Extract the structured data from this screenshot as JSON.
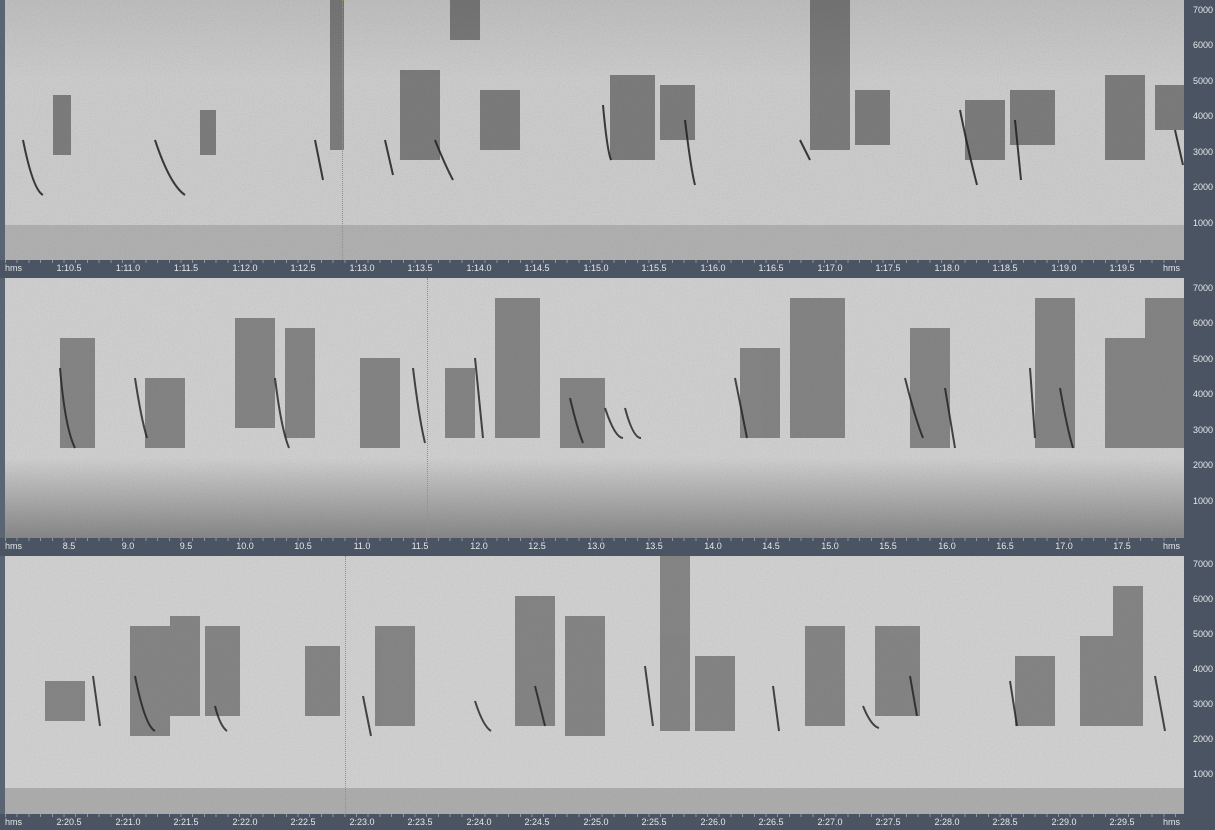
{
  "panels": [
    {
      "x_unit_left": "hms",
      "x_unit_right": "hms",
      "x_ticks": [
        "1:10.5",
        "1:11.0",
        "1:11.5",
        "1:12.0",
        "1:12.5",
        "1:13.0",
        "1:13.5",
        "1:14.0",
        "1:14.5",
        "1:15.0",
        "1:15.5",
        "1:16.0",
        "1:16.5",
        "1:17.0",
        "1:17.5",
        "1:18.0",
        "1:18.5",
        "1:19.0",
        "1:19.5"
      ],
      "y_ticks": [
        "7000",
        "6000",
        "5000",
        "4000",
        "3000",
        "2000",
        "1000"
      ]
    },
    {
      "x_unit_left": "hms",
      "x_unit_right": "hms",
      "x_ticks": [
        "8.5",
        "9.0",
        "9.5",
        "10.0",
        "10.5",
        "11.0",
        "11.5",
        "12.0",
        "12.5",
        "13.0",
        "13.5",
        "14.0",
        "14.5",
        "15.0",
        "15.5",
        "16.0",
        "16.5",
        "17.0",
        "17.5"
      ],
      "y_ticks": [
        "7000",
        "6000",
        "5000",
        "4000",
        "3000",
        "2000",
        "1000"
      ]
    },
    {
      "x_unit_left": "hms",
      "x_unit_right": "hms",
      "x_ticks": [
        "2:20.5",
        "2:21.0",
        "2:21.5",
        "2:22.0",
        "2:22.5",
        "2:23.0",
        "2:23.5",
        "2:24.0",
        "2:24.5",
        "2:25.0",
        "2:25.5",
        "2:26.0",
        "2:26.5",
        "2:27.0",
        "2:27.5",
        "2:28.0",
        "2:28.5",
        "2:29.0",
        "2:29.5"
      ],
      "y_ticks": [
        "7000",
        "6000",
        "5000",
        "4000",
        "3000",
        "2000",
        "1000"
      ]
    }
  ],
  "colors": {
    "background": "#c9c9c9",
    "axis": "#4a5462",
    "ink": "#2e2e2e",
    "cursor": "#9a9a40"
  }
}
